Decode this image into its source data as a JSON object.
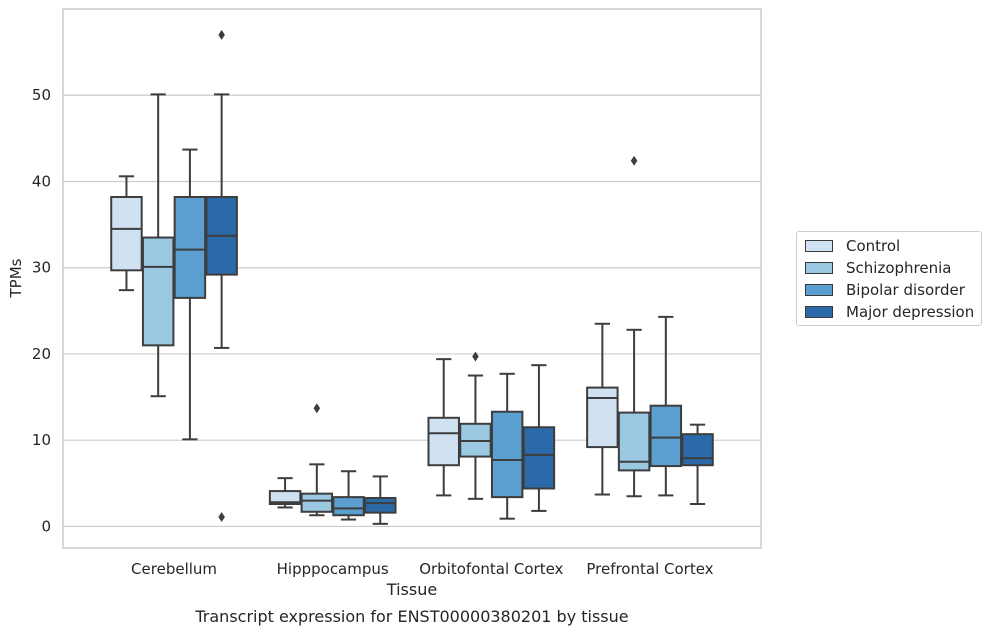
{
  "chart_data": {
    "type": "box",
    "title": "Transcript expression for ENST00000380201 by tissue",
    "xlabel": "Tissue",
    "ylabel": "TPMs",
    "ylim": [
      -2.5,
      60
    ],
    "yticks": [
      0,
      10,
      20,
      30,
      40,
      50
    ],
    "grid": "horizontal",
    "legend_position": "right",
    "categories": [
      "Cerebellum",
      "Hipppocampus",
      "Orbitofontal Cortex",
      "Prefrontal Cortex"
    ],
    "series": [
      {
        "name": "Control",
        "color": "#d0e2f2",
        "boxes": [
          {
            "whisker_low": 27.4,
            "q1": 29.7,
            "median": 34.5,
            "q3": 38.2,
            "whisker_high": 40.6,
            "outliers": []
          },
          {
            "whisker_low": 2.2,
            "q1": 2.6,
            "median": 2.8,
            "q3": 4.1,
            "whisker_high": 5.6,
            "outliers": []
          },
          {
            "whisker_low": 3.6,
            "q1": 7.1,
            "median": 10.8,
            "q3": 12.6,
            "whisker_high": 19.4,
            "outliers": []
          },
          {
            "whisker_low": 3.7,
            "q1": 9.2,
            "median": 14.9,
            "q3": 16.1,
            "whisker_high": 23.5,
            "outliers": []
          }
        ]
      },
      {
        "name": "Schizophrenia",
        "color": "#9ac8e0",
        "boxes": [
          {
            "whisker_low": 15.1,
            "q1": 21.0,
            "median": 30.1,
            "q3": 33.5,
            "whisker_high": 50.1,
            "outliers": []
          },
          {
            "whisker_low": 1.3,
            "q1": 1.7,
            "median": 3.0,
            "q3": 3.8,
            "whisker_high": 7.2,
            "outliers": [
              13.7
            ]
          },
          {
            "whisker_low": 3.2,
            "q1": 8.1,
            "median": 9.9,
            "q3": 11.9,
            "whisker_high": 17.5,
            "outliers": [
              19.7
            ]
          },
          {
            "whisker_low": 3.5,
            "q1": 6.5,
            "median": 7.5,
            "q3": 13.2,
            "whisker_high": 22.8,
            "outliers": [
              42.4
            ]
          }
        ]
      },
      {
        "name": "Bipolar disorder",
        "color": "#5a9fcf",
        "boxes": [
          {
            "whisker_low": 10.1,
            "q1": 26.5,
            "median": 32.1,
            "q3": 38.2,
            "whisker_high": 43.7,
            "outliers": []
          },
          {
            "whisker_low": 0.8,
            "q1": 1.3,
            "median": 2.1,
            "q3": 3.4,
            "whisker_high": 6.4,
            "outliers": []
          },
          {
            "whisker_low": 0.9,
            "q1": 3.4,
            "median": 7.7,
            "q3": 13.3,
            "whisker_high": 17.7,
            "outliers": []
          },
          {
            "whisker_low": 3.6,
            "q1": 7.0,
            "median": 10.3,
            "q3": 14.0,
            "whisker_high": 24.3,
            "outliers": []
          }
        ]
      },
      {
        "name": "Major depression",
        "color": "#2b6aa8",
        "boxes": [
          {
            "whisker_low": 20.7,
            "q1": 29.2,
            "median": 33.7,
            "q3": 38.2,
            "whisker_high": 50.1,
            "outliers": [
              57.0,
              1.1
            ]
          },
          {
            "whisker_low": 0.3,
            "q1": 1.6,
            "median": 2.7,
            "q3": 3.3,
            "whisker_high": 5.8,
            "outliers": []
          },
          {
            "whisker_low": 1.8,
            "q1": 4.4,
            "median": 8.3,
            "q3": 11.5,
            "whisker_high": 18.7,
            "outliers": []
          },
          {
            "whisker_low": 2.6,
            "q1": 7.1,
            "median": 7.9,
            "q3": 10.7,
            "whisker_high": 11.8,
            "outliers": []
          }
        ]
      }
    ]
  }
}
